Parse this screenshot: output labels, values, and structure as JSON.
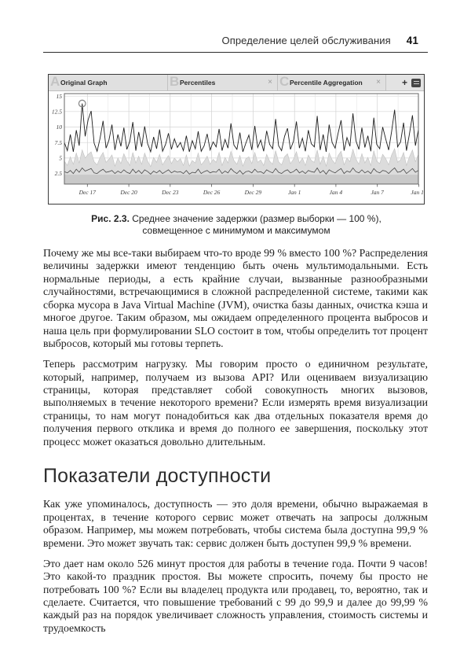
{
  "header": {
    "title": "Определение целей обслуживания",
    "page_number": "41"
  },
  "figure": {
    "tabs": [
      {
        "ghost": "A",
        "label": "Original Graph"
      },
      {
        "ghost": "B",
        "label": "Percentiles"
      },
      {
        "ghost": "C",
        "label": "Percentile Aggregation"
      }
    ],
    "icons": {
      "close": "×",
      "add": "+",
      "menu": "list-menu-icon"
    },
    "caption_label": "Рис. 2.3.",
    "caption_line1": "Среднее значение задержки (размер выборки — 100 %),",
    "caption_line2": "совмещенное с минимумом и максимумом"
  },
  "chart_data": {
    "type": "line",
    "title": "",
    "xlabel": "",
    "ylabel": "",
    "grid": true,
    "legend": "none",
    "x_ticks": [
      "Dec 17",
      "Dec 20",
      "Dec 23",
      "Dec 26",
      "Dec 29",
      "Jan 1",
      "Jan 4",
      "Jan 7",
      "Jan 10"
    ],
    "y_ticks": [
      15,
      12.5,
      10,
      7.5,
      5,
      2.5
    ],
    "ylim": [
      0.8,
      15.4
    ],
    "bottom_band_top": 2.3,
    "marker_note": "circle marker on highest mean peak near Dec 17",
    "series": [
      {
        "name": "mean-latency",
        "color": "#1f1f1f",
        "values": [
          7.5,
          6.2,
          8.8,
          6.0,
          9.5,
          7.0,
          13.8,
          8.5,
          11.2,
          12.6,
          7.4,
          6.1,
          8.2,
          11.0,
          6.6,
          7.9,
          10.4,
          6.3,
          8.8,
          6.9,
          9.9,
          6.4,
          7.7,
          10.8,
          6.2,
          9.2,
          6.8,
          10.1,
          7.3,
          6.0,
          8.4,
          6.5,
          9.6,
          6.1,
          7.2,
          9.0,
          6.4,
          8.1,
          6.7,
          7.5,
          6.2,
          8.6,
          6.0,
          7.8,
          6.5,
          9.3,
          6.1,
          7.0,
          8.9,
          6.3,
          7.6,
          6.8,
          9.7,
          6.2,
          8.0,
          6.6,
          10.6,
          7.1,
          6.4,
          9.1,
          6.0,
          7.4,
          8.7,
          6.3,
          10.2,
          6.7,
          7.9,
          6.1,
          9.4,
          7.2,
          6.5,
          11.3,
          7.0,
          6.2,
          8.5,
          9.8,
          6.4,
          7.7,
          10.9,
          6.6,
          8.2,
          6.1,
          9.5,
          7.3,
          6.8,
          11.8,
          6.3,
          8.8,
          6.0,
          10.4,
          7.5,
          6.6,
          9.0,
          11.1,
          6.2,
          8.3,
          6.9,
          12.2,
          7.8,
          6.4,
          9.9,
          6.7,
          8.6,
          6.1,
          11.5,
          7.2,
          6.5,
          10.0,
          8.1,
          6.3,
          9.3,
          12.8,
          6.8,
          7.6,
          10.7,
          6.2,
          8.9,
          11.9,
          7.0,
          9.6
        ]
      },
      {
        "name": "max-min-envelope",
        "color": "#dcdcdc",
        "render": "area",
        "values": [
          4.5,
          3.8,
          5.2,
          4.0,
          5.8,
          4.2,
          6.3,
          5.0,
          5.6,
          6.0,
          4.4,
          3.9,
          5.1,
          5.9,
          4.3,
          4.8,
          5.5,
          3.7,
          5.0,
          4.1,
          5.7,
          4.6,
          3.8,
          5.9,
          4.2,
          5.3,
          4.0,
          5.8,
          4.5,
          3.6,
          5.1,
          4.3,
          5.6,
          3.9,
          4.7,
          5.4,
          4.1,
          5.0,
          4.4,
          4.9,
          3.8,
          5.5,
          3.7,
          4.6,
          4.2,
          5.8,
          3.9,
          4.5,
          5.3,
          4.0,
          4.8,
          4.3,
          5.9,
          3.8,
          5.1,
          4.2,
          6.1,
          4.6,
          4.0,
          5.4,
          3.7,
          4.9,
          5.2,
          4.1,
          5.9,
          4.3,
          4.7,
          3.8,
          5.6,
          4.5,
          4.0,
          6.2,
          4.4,
          3.9,
          5.2,
          5.7,
          4.1,
          4.8,
          6.0,
          4.2,
          5.0,
          3.8,
          5.5,
          4.6,
          4.3,
          6.3,
          4.0,
          5.3,
          3.7,
          5.8,
          4.7,
          4.1,
          5.4,
          6.1,
          3.9,
          5.0,
          4.4,
          6.4,
          4.8,
          4.0,
          5.7,
          4.2,
          5.1,
          3.8,
          6.2,
          4.5,
          4.1,
          5.6,
          4.9,
          3.9,
          5.5,
          6.5,
          4.3,
          4.7,
          5.9,
          3.8,
          5.2,
          6.3,
          4.4,
          5.6
        ]
      },
      {
        "name": "min-latency",
        "color": "#4a4a4a",
        "values": [
          2.8,
          2.6,
          3.0,
          2.5,
          3.2,
          2.7,
          3.4,
          2.9,
          3.1,
          3.3,
          2.6,
          2.5,
          2.9,
          3.2,
          2.7,
          2.8,
          3.0,
          2.5,
          2.9,
          2.6,
          3.1,
          2.7,
          2.5,
          3.2,
          2.6,
          3.0,
          2.5,
          3.1,
          2.8,
          2.4,
          2.9,
          2.6,
          3.0,
          2.5,
          2.8,
          3.1,
          2.6,
          2.9,
          2.7,
          2.8,
          2.5,
          3.0,
          2.4,
          2.7,
          2.6,
          3.2,
          2.5,
          2.8,
          3.0,
          2.6,
          2.8,
          2.7,
          3.2,
          2.5,
          2.9,
          2.6,
          3.3,
          2.8,
          2.5,
          3.0,
          2.4,
          2.8,
          2.9,
          2.6,
          3.2,
          2.7,
          2.8,
          2.5,
          3.1,
          2.8,
          2.6,
          3.3,
          2.7,
          2.5,
          2.9,
          3.1,
          2.6,
          2.8,
          3.2,
          2.6,
          2.9,
          2.5,
          3.0,
          2.8,
          2.7,
          3.4,
          2.6,
          3.0,
          2.4,
          3.1,
          2.8,
          2.6,
          3.0,
          3.3,
          2.5,
          2.9,
          2.7,
          3.4,
          2.8,
          2.6,
          3.1,
          2.6,
          2.9,
          2.5,
          3.3,
          2.8,
          2.6,
          3.0,
          2.9,
          2.5,
          3.0,
          3.4,
          2.7,
          2.8,
          3.2,
          2.5,
          2.9,
          3.3,
          2.7,
          3.0
        ]
      }
    ]
  },
  "content": {
    "paragraphs_before": [
      "Почему же мы все-таки выбираем что-то вроде 99 % вместо 100 %? Распределения величины задержки имеют тенденцию быть очень мультимодальными. Есть нормальные периоды, а есть крайние случаи, вызванные разнообразными случайностями, встречающимися в сложной распределенной системе, такими как сборка мусора в Java Virtual Machine (JVM), очистка базы данных, очистка кэша и многое другое. Таким образом, мы ожидаем определенного процента выбросов и наша цель при формулировании SLO состоит в том, чтобы определить тот процент выбросов, который мы готовы терпеть.",
      "Теперь рассмотрим нагрузку. Мы говорим просто о единичном результате, который, например, получаем из вызова API? Или оцениваем визуализацию страницы, которая представляет собой совокупность многих вызовов, выполняемых в течение некоторого времени? Если измерять время визуализации страницы, то нам могут понадобиться как два отдельных показателя время до получения первого отклика и время до полного ее завершения, поскольку этот процесс может оказаться довольно длительным."
    ],
    "section_heading": "Показатели доступности",
    "paragraphs_after": [
      "Как уже упоминалось, доступность — это доля времени, обычно выражаемая в процентах, в течение которого сервис может отвечать на запросы должным образом. Например, мы можем потребовать, чтобы система была доступна 99,9 % времени. Это может звучать так: сервис должен быть доступен 99,9 % времени.",
      "Это дает нам около 526 минут простоя для работы в течение года. Почти 9 часов! Это какой-то праздник простоя. Вы можете спросить, почему бы просто не потребовать 100 %? Если вы владелец продукта или продавец, то, вероятно, так и сделаете. Считается, что повышение требований с 99 до 99,9 и далее до 99,99 % каждый раз на порядок увеличивает сложность управления, стоимость системы и трудоемкость"
    ]
  }
}
